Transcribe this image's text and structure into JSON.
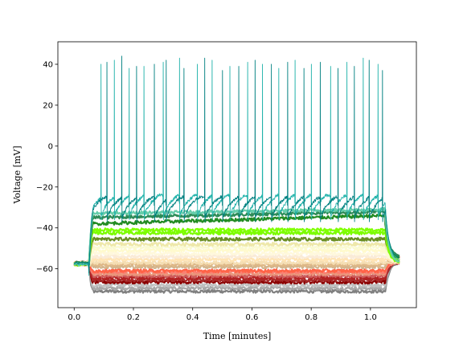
{
  "chart_data": {
    "type": "line",
    "xlabel": "Time [minutes]",
    "ylabel": "Voltage [mV]",
    "xlim": [
      -0.055,
      1.155
    ],
    "ylim": [
      -79,
      51
    ],
    "grid": false,
    "xticks": [
      {
        "v": 0.0,
        "label": "0.0"
      },
      {
        "v": 0.2,
        "label": "0.2"
      },
      {
        "v": 0.4,
        "label": "0.4"
      },
      {
        "v": 0.6,
        "label": "0.6"
      },
      {
        "v": 0.8,
        "label": "0.8"
      },
      {
        "v": 1.0,
        "label": "1.0"
      }
    ],
    "yticks": [
      {
        "v": 40,
        "label": "40"
      },
      {
        "v": 20,
        "label": "20"
      },
      {
        "v": 0,
        "label": "0"
      },
      {
        "v": -20,
        "label": "−20"
      },
      {
        "v": -40,
        "label": "−40"
      },
      {
        "v": -60,
        "label": "−60"
      }
    ],
    "stimulus": {
      "rest_mV": -58,
      "on_min": 0.05,
      "off_min": 1.05,
      "end_min": 1.1
    },
    "series": [
      {
        "color": "#808080",
        "plateau": -71
      },
      {
        "color": "#a9a9a9",
        "plateau": -69.5
      },
      {
        "color": "#c0c0c0",
        "plateau": -68
      },
      {
        "color": "#8b0000",
        "plateau": -66.5
      },
      {
        "color": "#a52a2a",
        "plateau": -65.5
      },
      {
        "color": "#b22222",
        "plateau": -64.5
      },
      {
        "color": "#cd5c5c",
        "plateau": -63.5
      },
      {
        "color": "#e9967a",
        "plateau": -62.5
      },
      {
        "color": "#fa8072",
        "plateau": -61.5
      },
      {
        "color": "#ff6347",
        "plateau": -61
      },
      {
        "color": "#d2b48c",
        "plateau": -59
      },
      {
        "color": "#deb887",
        "plateau": -58
      },
      {
        "color": "#f5deb3",
        "plateau": -57
      },
      {
        "color": "#ffe4b5",
        "plateau": -55.5
      },
      {
        "color": "#faebd7",
        "plateau": -54
      },
      {
        "color": "#fff8dc",
        "plateau": -52.5
      },
      {
        "color": "#fffacd",
        "plateau": -51
      },
      {
        "color": "#fafad2",
        "plateau": -49.5
      },
      {
        "color": "#eee8aa",
        "plateau": -48
      },
      {
        "color": "#6b8e23",
        "plateau": -45.5
      },
      {
        "color": "#7cfc00",
        "plateau": -42.5
      },
      {
        "color": "#7fff00",
        "plateau": -41
      },
      {
        "color": "#228b22",
        "plateau": -38,
        "rise": 4
      },
      {
        "color": "#2e8b57",
        "plateau": -35,
        "rise": 3
      },
      {
        "color": "#66cdaa",
        "plateau": -33,
        "rise": 2
      },
      {
        "color": "#20b2aa",
        "plateau": -30,
        "spikes": [
          0.09,
          0.135,
          0.185,
          0.235,
          0.3,
          0.355,
          0.415,
          0.465,
          0.525,
          0.585,
          0.635,
          0.69,
          0.745,
          0.8,
          0.865,
          0.92,
          0.975,
          1.025
        ],
        "peaks": [
          40,
          42,
          38,
          39,
          41,
          43,
          40,
          42,
          39,
          41,
          40,
          38,
          42,
          40,
          39,
          41,
          43,
          40
        ]
      },
      {
        "color": "#008080",
        "plateau": -31,
        "spikes": [
          0.11,
          0.16,
          0.21,
          0.27,
          0.31,
          0.37,
          0.44,
          0.5,
          0.555,
          0.61,
          0.665,
          0.72,
          0.775,
          0.83,
          0.89,
          0.945,
          0.995,
          1.04
        ],
        "peaks": [
          41,
          44,
          39,
          40,
          42,
          38,
          43,
          37,
          39,
          42,
          40,
          41,
          38,
          41,
          38,
          39,
          42,
          37
        ]
      }
    ]
  }
}
